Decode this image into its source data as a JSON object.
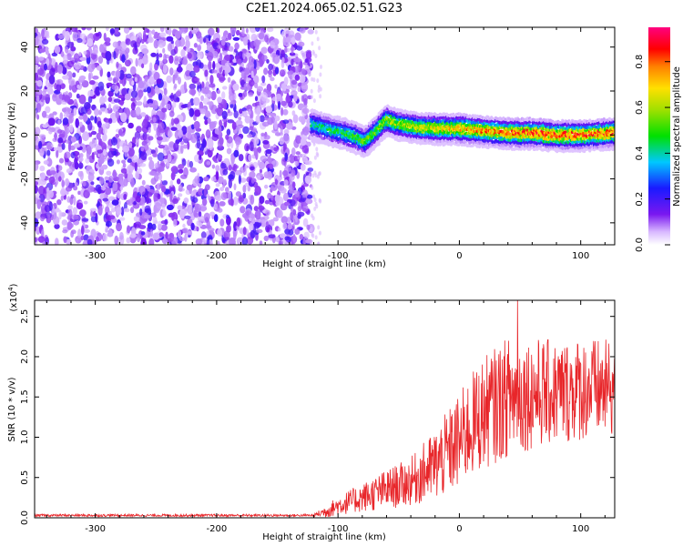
{
  "title": "C2E1.2024.065.02.51.G23",
  "colors": {
    "snr_line": "#e8262a",
    "spectrogram_noise": "#7a18f0",
    "axis": "#000000",
    "background": "#ffffff"
  },
  "chart_data": [
    {
      "type": "heatmap",
      "name": "spectrogram",
      "xlabel": "Height of straight line (km)",
      "ylabel": "Frequency (Hz)",
      "xlim": [
        -350,
        128
      ],
      "ylim": [
        -50,
        49
      ],
      "xticks": [
        -300,
        -200,
        -100,
        0,
        100
      ],
      "xtick_labels": [
        "-300",
        "-200",
        "-100",
        "0",
        "100"
      ],
      "yticks": [
        -40,
        -20,
        0,
        20,
        40
      ],
      "ytick_labels": [
        "-40",
        "-20",
        "0",
        "20",
        "40"
      ],
      "noise_region_end_km": -122,
      "signal_track": {
        "x": [
          -122,
          -110,
          -95,
          -85,
          -78,
          -70,
          -60,
          -50,
          -40,
          -20,
          0,
          20,
          40,
          60,
          80,
          100,
          128
        ],
        "y": [
          5,
          3,
          1,
          -1,
          -3,
          1,
          7,
          5,
          4,
          3,
          3,
          2,
          1,
          1,
          0,
          0,
          1
        ]
      },
      "colorbar": {
        "label": "Normalized spectral amplitude",
        "range": [
          0.0,
          0.95
        ],
        "ticks": [
          0.0,
          0.2,
          0.4,
          0.6,
          0.8
        ],
        "tick_labels": [
          "0.0",
          "0.2",
          "0.4",
          "0.6",
          "0.8"
        ],
        "colormap": [
          "#ffffff",
          "#7a18f0",
          "#2020ff",
          "#00c8ff",
          "#00e000",
          "#e0e000",
          "#ff8000",
          "#ff0000",
          "#ff0080"
        ]
      }
    },
    {
      "type": "line",
      "name": "snr",
      "xlabel": "Height of straight line (km)",
      "ylabel": "SNR (10 * v/v)",
      "ylabel_multiplier": "(x10",
      "ylabel_multiplier_exp": "4",
      "ylabel_multiplier_close": ")",
      "xlim": [
        -350,
        128
      ],
      "ylim": [
        0,
        2.7
      ],
      "xticks": [
        -300,
        -200,
        -100,
        0,
        100
      ],
      "xtick_labels": [
        "-300",
        "-200",
        "-100",
        "0",
        "100"
      ],
      "yticks": [
        0.0,
        0.5,
        1.0,
        1.5,
        2.0,
        2.5
      ],
      "ytick_labels": [
        "0.0",
        "0.5",
        "1.0",
        "1.5",
        "2.0",
        "2.5"
      ],
      "series": [
        {
          "name": "SNR",
          "envelope": {
            "x": [
              -350,
              -120,
              -110,
              -100,
              -80,
              -60,
              -40,
              -20,
              0,
              10,
              20,
              40,
              60,
              80,
              100,
              128
            ],
            "mean": [
              0.03,
              0.03,
              0.08,
              0.15,
              0.25,
              0.35,
              0.45,
              0.65,
              0.95,
              1.15,
              1.3,
              1.5,
              1.55,
              1.55,
              1.6,
              1.6
            ],
            "spread": [
              0.015,
              0.015,
              0.08,
              0.12,
              0.18,
              0.25,
              0.3,
              0.45,
              0.6,
              0.65,
              0.7,
              0.75,
              0.7,
              0.65,
              0.65,
              0.6
            ]
          },
          "peak": {
            "x": 48,
            "y": 2.7
          }
        }
      ]
    }
  ]
}
